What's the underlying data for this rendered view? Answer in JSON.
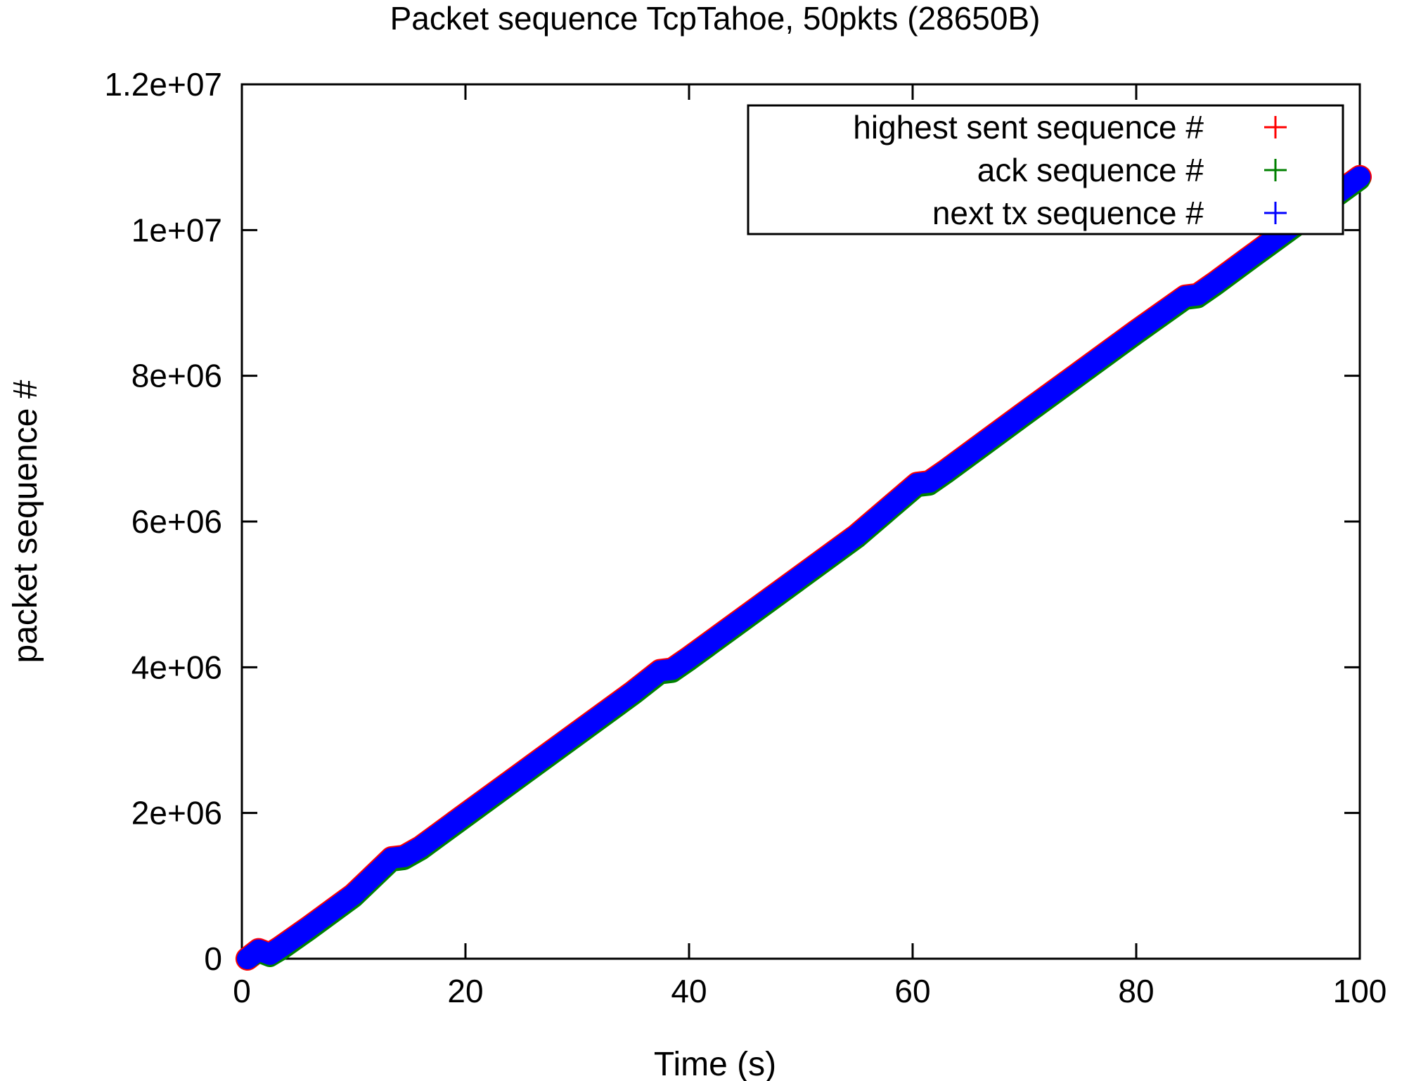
{
  "chart_data": {
    "type": "scatter",
    "title": "Packet sequence TcpTahoe, 50pkts (28650B)",
    "xlabel": "Time (s)",
    "ylabel": "packet sequence #",
    "xlim": [
      0,
      100
    ],
    "ylim": [
      0,
      12000000
    ],
    "x_ticks": [
      0,
      20,
      40,
      60,
      80,
      100
    ],
    "x_tick_labels": [
      "0",
      "20",
      "40",
      "60",
      "80",
      "100"
    ],
    "y_ticks": [
      0,
      2000000,
      4000000,
      6000000,
      8000000,
      10000000,
      12000000
    ],
    "y_tick_labels": [
      "0",
      "2e+06",
      "4e+06",
      "6e+06",
      "8e+06",
      "1e+07",
      "1.2e+07"
    ],
    "grid": false,
    "legend_position": "top-right",
    "marker": "+",
    "series": [
      {
        "name": "highest sent sequence #",
        "color": "#ff0000",
        "x": [
          0.5,
          1.5,
          2.5,
          3.5,
          6,
          10,
          13.4,
          14.5,
          16,
          20,
          25,
          30,
          35,
          37.4,
          38.5,
          40,
          45,
          50,
          55,
          60.4,
          61.5,
          63,
          70,
          75,
          80,
          84.4,
          85.5,
          87,
          90,
          95,
          100
        ],
        "y": [
          0,
          120000,
          60000,
          160000,
          430000,
          880000,
          1380000,
          1400000,
          1530000,
          1980000,
          2540000,
          3100000,
          3660000,
          3950000,
          3970000,
          4130000,
          4690000,
          5250000,
          5810000,
          6520000,
          6540000,
          6700000,
          7490000,
          8050000,
          8610000,
          9090000,
          9110000,
          9270000,
          9610000,
          10170000,
          10730000
        ]
      },
      {
        "name": "ack sequence #",
        "color": "#008000",
        "x": [
          0.5,
          1.5,
          2.5,
          3.5,
          6,
          10,
          13.4,
          14.5,
          16,
          20,
          25,
          30,
          35,
          37.4,
          38.5,
          40,
          45,
          50,
          55,
          60.4,
          61.5,
          63,
          70,
          75,
          80,
          84.4,
          85.5,
          87,
          90,
          95,
          100
        ],
        "y": [
          0,
          90000,
          30000,
          120000,
          390000,
          840000,
          1340000,
          1360000,
          1490000,
          1940000,
          2500000,
          3060000,
          3620000,
          3910000,
          3930000,
          4090000,
          4650000,
          5210000,
          5770000,
          6480000,
          6500000,
          6660000,
          7450000,
          8010000,
          8570000,
          9050000,
          9070000,
          9230000,
          9570000,
          10130000,
          10690000
        ]
      },
      {
        "name": "next tx sequence #",
        "color": "#0000ff",
        "x": [
          0.5,
          1.5,
          2.5,
          3.5,
          6,
          10,
          13.4,
          14.5,
          16,
          20,
          25,
          30,
          35,
          37.4,
          38.5,
          40,
          45,
          50,
          55,
          60.4,
          61.5,
          63,
          70,
          75,
          80,
          84.4,
          85.5,
          87,
          90,
          95,
          100
        ],
        "y": [
          0,
          120000,
          60000,
          160000,
          430000,
          880000,
          1380000,
          1400000,
          1530000,
          1980000,
          2540000,
          3100000,
          3660000,
          3950000,
          3970000,
          4130000,
          4690000,
          5250000,
          5810000,
          6520000,
          6540000,
          6700000,
          7490000,
          8050000,
          8610000,
          9090000,
          9110000,
          9270000,
          9610000,
          10170000,
          10730000
        ]
      }
    ]
  }
}
